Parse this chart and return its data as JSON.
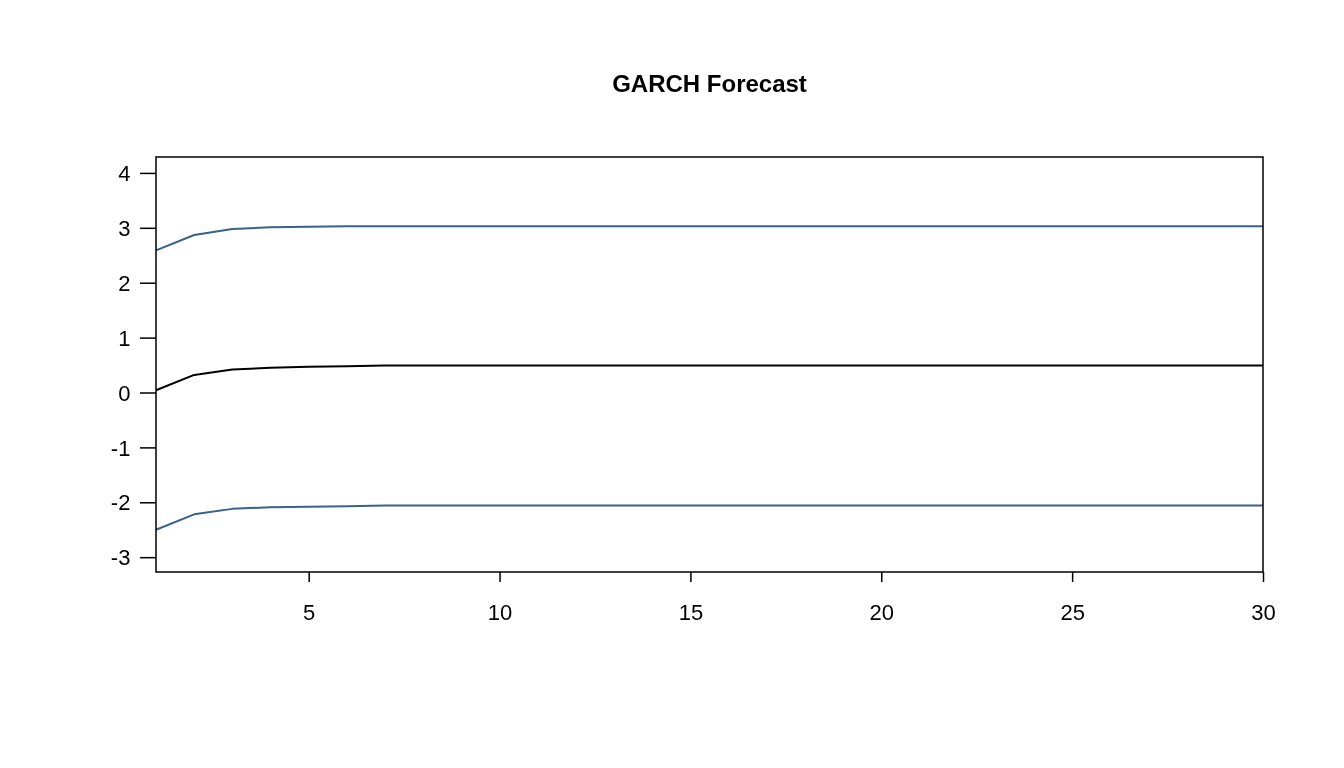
{
  "chart_data": {
    "type": "line",
    "title": "GARCH Forecast",
    "x": [
      1,
      2,
      3,
      4,
      5,
      6,
      7,
      8,
      9,
      10,
      11,
      12,
      13,
      14,
      15,
      16,
      17,
      18,
      19,
      20,
      21,
      22,
      23,
      24,
      25,
      26,
      27,
      28,
      29,
      30
    ],
    "series": [
      {
        "color": "#386288",
        "values": [
          2.59,
          2.87,
          2.98,
          3.01,
          3.02,
          3.03,
          3.03,
          3.03,
          3.03,
          3.03,
          3.03,
          3.03,
          3.03,
          3.03,
          3.03,
          3.03,
          3.03,
          3.03,
          3.03,
          3.03,
          3.03,
          3.03,
          3.03,
          3.03,
          3.03,
          3.03,
          3.03,
          3.03,
          3.03,
          3.03
        ]
      },
      {
        "color": "#000000",
        "values": [
          0.04,
          0.32,
          0.42,
          0.45,
          0.47,
          0.48,
          0.49,
          0.49,
          0.49,
          0.49,
          0.49,
          0.49,
          0.49,
          0.49,
          0.49,
          0.49,
          0.49,
          0.49,
          0.49,
          0.49,
          0.49,
          0.49,
          0.49,
          0.49,
          0.49,
          0.49,
          0.49,
          0.49,
          0.49,
          0.49
        ]
      },
      {
        "color": "#386288",
        "values": [
          -2.5,
          -2.22,
          -2.12,
          -2.09,
          -2.08,
          -2.07,
          -2.06,
          -2.06,
          -2.06,
          -2.06,
          -2.06,
          -2.06,
          -2.06,
          -2.06,
          -2.06,
          -2.06,
          -2.06,
          -2.06,
          -2.06,
          -2.06,
          -2.06,
          -2.06,
          -2.06,
          -2.06,
          -2.06,
          -2.06,
          -2.06,
          -2.06,
          -2.06,
          -2.06
        ]
      }
    ],
    "xlim": [
      1,
      30
    ],
    "xticks": [
      5,
      10,
      15,
      20,
      25,
      30
    ],
    "ylim": [
      -3.27,
      4.29
    ],
    "yticks": [
      -3,
      -2,
      -1,
      0,
      1,
      2,
      3,
      4
    ],
    "grid": false,
    "marker": "none",
    "line_style": "solid"
  }
}
